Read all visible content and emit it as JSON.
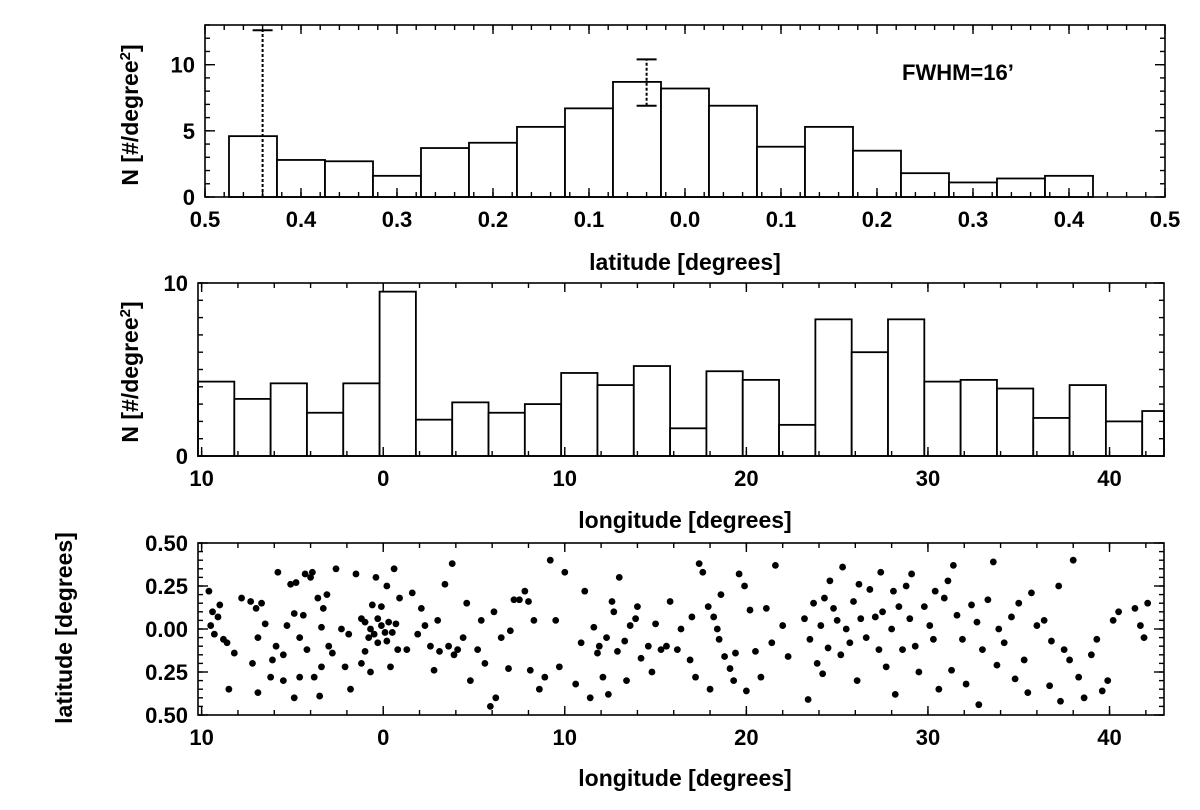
{
  "chart_data": [
    {
      "type": "bar",
      "panel": "latitude-histogram",
      "xlabel": "latitude [degrees]",
      "ylabel": "N [#/degree2]",
      "ylabel_main": "N [#/degree",
      "ylabel_sup": "2",
      "ylabel_close": "]",
      "xlim": [
        -0.5,
        0.5
      ],
      "ylim": [
        0,
        13
      ],
      "x_ticks": [
        -0.5,
        -0.4,
        -0.3,
        -0.2,
        -0.1,
        0.0,
        0.1,
        0.2,
        0.3,
        0.4,
        0.5
      ],
      "x_tick_labels": [
        "0.5",
        "0.4",
        "0.3",
        "0.2",
        "0.1",
        "0.0",
        "0.1",
        "0.2",
        "0.3",
        "0.4",
        "0.5"
      ],
      "y_ticks": [
        0,
        5,
        10
      ],
      "y_tick_labels": [
        "0",
        "5",
        "10"
      ],
      "bin_edges": [
        -0.475,
        -0.425,
        -0.375,
        -0.325,
        -0.275,
        -0.225,
        -0.175,
        -0.125,
        -0.075,
        -0.025,
        0.025,
        0.075,
        0.125,
        0.175,
        0.225,
        0.275,
        0.325,
        0.375,
        0.425
      ],
      "values": [
        4.6,
        2.8,
        2.7,
        1.6,
        3.7,
        4.1,
        5.3,
        6.7,
        8.7,
        8.2,
        6.9,
        3.8,
        5.3,
        3.5,
        1.8,
        1.1,
        1.4,
        1.6
      ],
      "error_bars": [
        {
          "x": -0.44,
          "low": 0,
          "high": 12.6
        },
        {
          "x": -0.04,
          "low": 6.9,
          "high": 10.4
        }
      ],
      "annotation": "FWHM=16’"
    },
    {
      "type": "bar",
      "panel": "longitude-histogram",
      "xlabel": "longitude [degrees]",
      "ylabel": "N [#/degree2]",
      "ylabel_main": "N [#/degree",
      "ylabel_sup": "2",
      "ylabel_close": "]",
      "xlim": [
        -10.2,
        43
      ],
      "ylim": [
        0,
        10
      ],
      "x_ticks": [
        -10,
        0,
        10,
        20,
        30,
        40
      ],
      "x_tick_labels": [
        "10",
        "0",
        "10",
        "20",
        "30",
        "40"
      ],
      "y_ticks": [
        0,
        10
      ],
      "y_tick_labels": [
        "0",
        "10"
      ],
      "bin_width": 2,
      "first_bin_left": -10.2,
      "values": [
        4.3,
        3.3,
        4.2,
        2.5,
        4.2,
        9.5,
        2.1,
        3.1,
        2.5,
        3.0,
        4.8,
        4.1,
        5.2,
        1.6,
        4.9,
        4.4,
        1.8,
        7.9,
        6.0,
        7.9,
        4.3,
        4.4,
        3.9,
        2.2,
        4.1,
        2.0,
        2.6
      ]
    },
    {
      "type": "scatter",
      "panel": "position-scatter",
      "xlabel": "longitude [degrees]",
      "ylabel": "latitude [degrees]",
      "xlim": [
        -10.2,
        43
      ],
      "ylim": [
        -0.5,
        0.5
      ],
      "x_ticks": [
        -10,
        0,
        10,
        20,
        30,
        40
      ],
      "x_tick_labels": [
        "10",
        "0",
        "10",
        "20",
        "30",
        "40"
      ],
      "y_ticks": [
        -0.5,
        -0.25,
        0,
        0.25,
        0.5
      ],
      "y_tick_labels": [
        "0.50",
        "0.25",
        "0.00",
        "0.25",
        "0.50"
      ],
      "points": [
        [
          -9.6,
          0.22
        ],
        [
          -9.4,
          0.1
        ],
        [
          -9.5,
          0.02
        ],
        [
          -9.3,
          -0.03
        ],
        [
          -9.1,
          0.07
        ],
        [
          -8.6,
          -0.08
        ],
        [
          -8.2,
          -0.14
        ],
        [
          -8.5,
          -0.35
        ],
        [
          -7.8,
          0.18
        ],
        [
          -7.3,
          0.16
        ],
        [
          -7.0,
          0.12
        ],
        [
          -6.7,
          0.15
        ],
        [
          -6.9,
          -0.05
        ],
        [
          -7.2,
          -0.2
        ],
        [
          -6.9,
          -0.37
        ],
        [
          -6.2,
          -0.28
        ],
        [
          -5.9,
          -0.1
        ],
        [
          -5.5,
          -0.15
        ],
        [
          -5.3,
          0.02
        ],
        [
          -4.9,
          0.09
        ],
        [
          -4.6,
          -0.05
        ],
        [
          -4.2,
          -0.12
        ],
        [
          -4.6,
          -0.28
        ],
        [
          -4.9,
          -0.4
        ],
        [
          -5.5,
          -0.3
        ],
        [
          -6.1,
          -0.18
        ],
        [
          -5.8,
          0.33
        ],
        [
          -5.1,
          0.26
        ],
        [
          -4.8,
          0.27
        ],
        [
          -4.3,
          0.32
        ],
        [
          -3.9,
          0.33
        ],
        [
          -4.0,
          0.3
        ],
        [
          -3.6,
          0.18
        ],
        [
          -3.3,
          0.12
        ],
        [
          -3.1,
          0.2
        ],
        [
          -3.4,
          0.01
        ],
        [
          -3.0,
          -0.1
        ],
        [
          -3.4,
          -0.22
        ],
        [
          -3.8,
          -0.28
        ],
        [
          -3.5,
          -0.39
        ],
        [
          -2.6,
          0.35
        ],
        [
          -2.3,
          0.0
        ],
        [
          -1.9,
          -0.03
        ],
        [
          -2.1,
          -0.22
        ],
        [
          -1.8,
          -0.35
        ],
        [
          -1.2,
          0.06
        ],
        [
          -1.0,
          0.04
        ],
        [
          -0.7,
          0.0
        ],
        [
          -0.5,
          -0.03
        ],
        [
          -0.3,
          0.06
        ],
        [
          -0.1,
          0.02
        ],
        [
          0.1,
          -0.02
        ],
        [
          0.3,
          0.04
        ],
        [
          0.5,
          -0.02
        ],
        [
          0.7,
          0.03
        ],
        [
          0.2,
          -0.07
        ],
        [
          -0.3,
          -0.08
        ],
        [
          -0.8,
          -0.05
        ],
        [
          -1.0,
          -0.13
        ],
        [
          -1.2,
          -0.2
        ],
        [
          -0.7,
          -0.25
        ],
        [
          0.4,
          -0.22
        ],
        [
          0.8,
          -0.12
        ],
        [
          -0.6,
          0.14
        ],
        [
          -0.1,
          0.13
        ],
        [
          0.2,
          0.25
        ],
        [
          -0.4,
          0.3
        ],
        [
          -1.5,
          0.32
        ],
        [
          0.9,
          0.18
        ],
        [
          1.6,
          0.21
        ],
        [
          1.9,
          -0.03
        ],
        [
          2.3,
          0.02
        ],
        [
          2.6,
          -0.1
        ],
        [
          3.1,
          -0.13
        ],
        [
          3.6,
          -0.1
        ],
        [
          3.9,
          -0.15
        ],
        [
          4.1,
          -0.12
        ],
        [
          4.4,
          -0.05
        ],
        [
          3.0,
          0.05
        ],
        [
          2.1,
          0.12
        ],
        [
          3.8,
          0.38
        ],
        [
          4.6,
          0.15
        ],
        [
          5.2,
          -0.12
        ],
        [
          5.6,
          -0.2
        ],
        [
          5.9,
          -0.45
        ],
        [
          6.2,
          -0.4
        ],
        [
          6.5,
          -0.05
        ],
        [
          6.9,
          -0.23
        ],
        [
          7.2,
          0.17
        ],
        [
          7.5,
          0.17
        ],
        [
          7.8,
          0.22
        ],
        [
          8.0,
          0.16
        ],
        [
          8.3,
          0.05
        ],
        [
          8.6,
          -0.35
        ],
        [
          8.9,
          -0.28
        ],
        [
          9.2,
          0.4
        ],
        [
          10.0,
          0.33
        ],
        [
          11.1,
          0.22
        ],
        [
          11.6,
          0.01
        ],
        [
          11.9,
          -0.1
        ],
        [
          12.3,
          -0.05
        ],
        [
          12.7,
          0.1
        ],
        [
          12.9,
          -0.13
        ],
        [
          13.3,
          -0.07
        ],
        [
          13.6,
          0.02
        ],
        [
          13.9,
          0.06
        ],
        [
          14.2,
          -0.17
        ],
        [
          14.6,
          -0.1
        ],
        [
          15.0,
          0.03
        ],
        [
          15.3,
          -0.12
        ],
        [
          12.1,
          -0.28
        ],
        [
          12.4,
          -0.38
        ],
        [
          11.4,
          -0.4
        ],
        [
          10.6,
          -0.32
        ],
        [
          13.0,
          0.3
        ],
        [
          14.0,
          0.13
        ],
        [
          15.6,
          -0.1
        ],
        [
          16.4,
          0.0
        ],
        [
          17.4,
          0.38
        ],
        [
          17.6,
          0.33
        ],
        [
          17.9,
          0.13
        ],
        [
          18.2,
          0.07
        ],
        [
          18.5,
          -0.06
        ],
        [
          18.8,
          -0.16
        ],
        [
          19.1,
          -0.23
        ],
        [
          19.3,
          -0.3
        ],
        [
          19.6,
          0.32
        ],
        [
          19.9,
          0.25
        ],
        [
          20.2,
          0.11
        ],
        [
          20.5,
          -0.13
        ],
        [
          20.8,
          -0.28
        ],
        [
          21.1,
          0.12
        ],
        [
          21.6,
          0.37
        ],
        [
          18.0,
          -0.35
        ],
        [
          16.9,
          -0.18
        ],
        [
          17.0,
          0.07
        ],
        [
          18.4,
          0.0
        ],
        [
          23.2,
          0.06
        ],
        [
          23.5,
          -0.06
        ],
        [
          23.7,
          0.15
        ],
        [
          23.9,
          -0.2
        ],
        [
          24.1,
          0.02
        ],
        [
          24.3,
          0.18
        ],
        [
          24.5,
          -0.11
        ],
        [
          24.6,
          0.28
        ],
        [
          24.8,
          0.12
        ],
        [
          25.0,
          0.05
        ],
        [
          25.2,
          -0.15
        ],
        [
          25.5,
          0.0
        ],
        [
          25.7,
          -0.08
        ],
        [
          25.9,
          0.16
        ],
        [
          26.1,
          -0.3
        ],
        [
          26.3,
          0.06
        ],
        [
          26.6,
          -0.05
        ],
        [
          26.8,
          0.23
        ],
        [
          27.1,
          0.07
        ],
        [
          27.3,
          -0.12
        ],
        [
          27.5,
          0.1
        ],
        [
          27.7,
          -0.22
        ],
        [
          28.0,
          0.0
        ],
        [
          28.2,
          -0.38
        ],
        [
          28.4,
          0.13
        ],
        [
          28.6,
          -0.12
        ],
        [
          28.8,
          0.25
        ],
        [
          29.0,
          0.06
        ],
        [
          29.3,
          -0.1
        ],
        [
          29.5,
          -0.25
        ],
        [
          29.8,
          0.13
        ],
        [
          30.1,
          0.02
        ],
        [
          30.3,
          -0.06
        ],
        [
          30.6,
          -0.35
        ],
        [
          30.9,
          0.18
        ],
        [
          31.1,
          0.28
        ],
        [
          31.4,
          0.37
        ],
        [
          31.6,
          0.08
        ],
        [
          31.9,
          -0.06
        ],
        [
          32.1,
          -0.32
        ],
        [
          32.4,
          0.14
        ],
        [
          32.7,
          0.04
        ],
        [
          33.0,
          -0.12
        ],
        [
          33.3,
          0.17
        ],
        [
          33.6,
          0.39
        ],
        [
          33.9,
          0.0
        ],
        [
          34.2,
          -0.08
        ],
        [
          34.6,
          0.07
        ],
        [
          35.0,
          0.15
        ],
        [
          35.3,
          -0.18
        ],
        [
          35.7,
          0.21
        ],
        [
          36.0,
          0.02
        ],
        [
          36.4,
          0.05
        ],
        [
          36.8,
          -0.07
        ],
        [
          37.2,
          0.25
        ],
        [
          37.5,
          -0.12
        ],
        [
          37.8,
          -0.18
        ],
        [
          38.0,
          0.4
        ],
        [
          38.3,
          -0.28
        ],
        [
          38.6,
          -0.4
        ],
        [
          39.0,
          -0.15
        ],
        [
          39.3,
          -0.06
        ],
        [
          39.6,
          -0.36
        ],
        [
          39.9,
          -0.3
        ],
        [
          40.2,
          0.05
        ],
        [
          40.5,
          0.1
        ],
        [
          41.4,
          0.12
        ],
        [
          41.7,
          0.02
        ],
        [
          41.9,
          -0.05
        ],
        [
          42.1,
          0.15
        ],
        [
          37.3,
          -0.42
        ],
        [
          36.7,
          -0.33
        ],
        [
          35.5,
          -0.37
        ],
        [
          34.8,
          -0.29
        ],
        [
          33.8,
          -0.21
        ],
        [
          32.8,
          -0.44
        ],
        [
          31.3,
          -0.24
        ],
        [
          30.4,
          0.22
        ],
        [
          29.1,
          0.32
        ],
        [
          28.1,
          0.22
        ],
        [
          27.4,
          0.33
        ],
        [
          26.2,
          0.26
        ],
        [
          25.3,
          0.36
        ],
        [
          24.2,
          -0.26
        ],
        [
          23.4,
          -0.41
        ],
        [
          22.3,
          -0.16
        ],
        [
          22.0,
          0.02
        ],
        [
          21.4,
          -0.08
        ],
        [
          20.0,
          -0.36
        ],
        [
          19.4,
          -0.14
        ],
        [
          18.6,
          0.2
        ],
        [
          17.2,
          -0.28
        ],
        [
          16.2,
          -0.12
        ],
        [
          15.8,
          0.16
        ],
        [
          14.8,
          -0.25
        ],
        [
          13.4,
          -0.3
        ],
        [
          12.6,
          0.16
        ],
        [
          11.8,
          -0.14
        ],
        [
          10.9,
          -0.08
        ],
        [
          9.7,
          -0.22
        ],
        [
          9.5,
          0.05
        ],
        [
          8.1,
          -0.24
        ],
        [
          7.0,
          -0.01
        ],
        [
          6.1,
          0.1
        ],
        [
          5.4,
          0.05
        ],
        [
          4.8,
          -0.3
        ],
        [
          3.4,
          0.26
        ],
        [
          2.8,
          -0.24
        ],
        [
          1.3,
          -0.12
        ],
        [
          0.6,
          0.35
        ],
        [
          -2.8,
          -0.14
        ],
        [
          -4.4,
          0.08
        ],
        [
          -6.5,
          0.03
        ],
        [
          -8.8,
          -0.06
        ],
        [
          -9.0,
          0.14
        ]
      ]
    }
  ]
}
